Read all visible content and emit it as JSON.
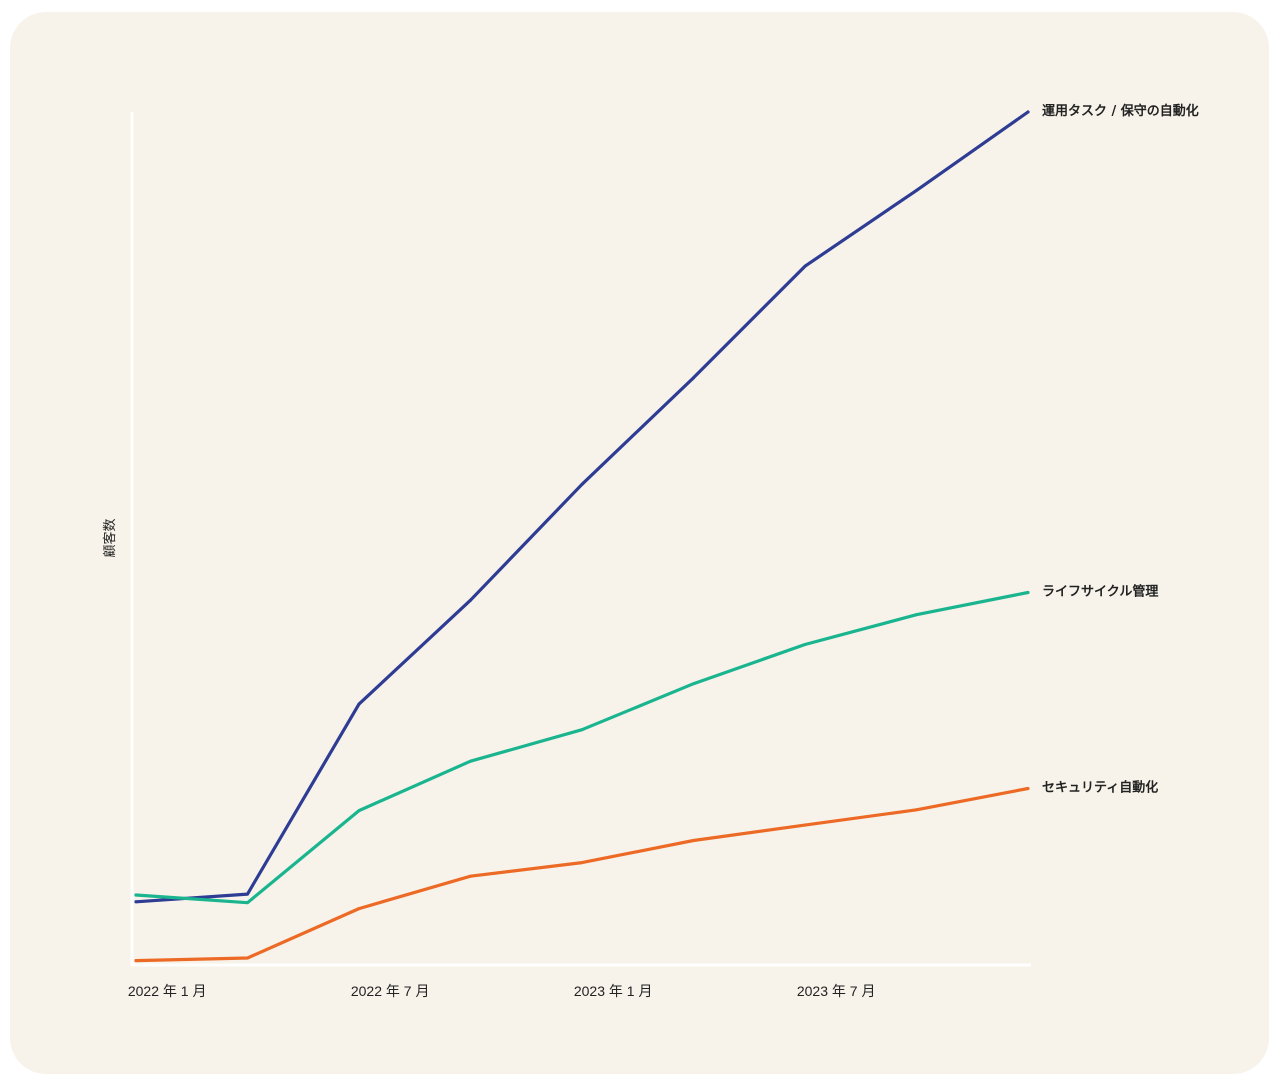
{
  "chart_data": {
    "type": "line",
    "title": "",
    "xlabel": "",
    "ylabel": "顧客数",
    "x": [
      "2021-12",
      "2022-03",
      "2022-06",
      "2022-09",
      "2022-12",
      "2023-03",
      "2023-06",
      "2023-09",
      "2023-12"
    ],
    "xtick_labels": [
      "2022 年 1 月",
      "2022 年 7 月",
      "2023 年 1 月",
      "2023 年 7 月"
    ],
    "xtick_positions": [
      "2022-01",
      "2022-07",
      "2023-01",
      "2023-07"
    ],
    "xlim": [
      "2021-12",
      "2023-12"
    ],
    "ylim": [
      0,
      100
    ],
    "grid": false,
    "legend": "direct labels at line ends",
    "series": [
      {
        "name": "運用タスク / 保守の自動化",
        "color": "#2e3c94",
        "values": [
          7.3,
          8.2,
          30.5,
          42.7,
          56.3,
          68.8,
          81.9,
          90.8,
          100
        ]
      },
      {
        "name": "ライフサイクル管理",
        "color": "#1ab58f",
        "values": [
          8.1,
          7.2,
          18.0,
          23.8,
          27.5,
          32.9,
          37.5,
          41.0,
          43.6
        ]
      },
      {
        "name": "セキュリティ自動化",
        "color": "#ec6a25",
        "values": [
          0.4,
          0.7,
          6.5,
          10.3,
          11.9,
          14.5,
          16.3,
          18.1,
          20.6
        ]
      }
    ]
  }
}
